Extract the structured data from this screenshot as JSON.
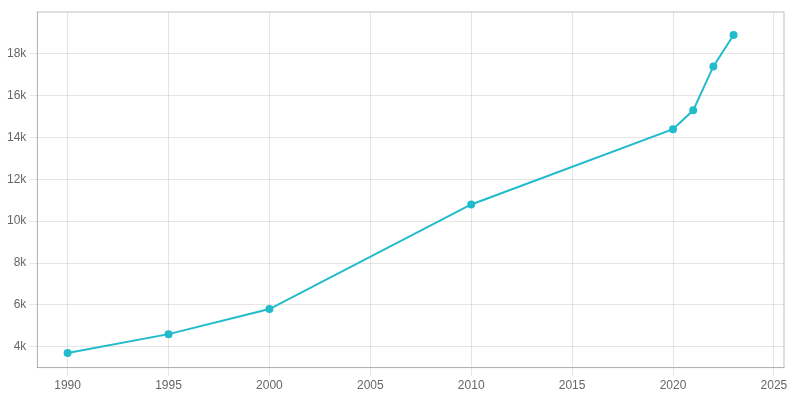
{
  "chart_data": {
    "type": "line",
    "x": [
      1990,
      1995,
      2000,
      2010,
      2020,
      2021,
      2022,
      2023
    ],
    "values": [
      3700,
      4600,
      5800,
      10800,
      14400,
      15300,
      17400,
      18900
    ],
    "color": "#22BBCC",
    "marker": "circle",
    "xlim": [
      1988.5,
      2025.5
    ],
    "ylim": [
      3000,
      20000
    ],
    "xticks": [
      1990,
      1995,
      2000,
      2005,
      2010,
      2015,
      2020,
      2025
    ],
    "yticks": [
      {
        "value": 4000,
        "label": "4k"
      },
      {
        "value": 6000,
        "label": "6k"
      },
      {
        "value": 8000,
        "label": "8k"
      },
      {
        "value": 10000,
        "label": "10k"
      },
      {
        "value": 12000,
        "label": "12k"
      },
      {
        "value": 14000,
        "label": "14k"
      },
      {
        "value": 16000,
        "label": "16k"
      },
      {
        "value": 18000,
        "label": "18k"
      }
    ],
    "grid": true
  }
}
